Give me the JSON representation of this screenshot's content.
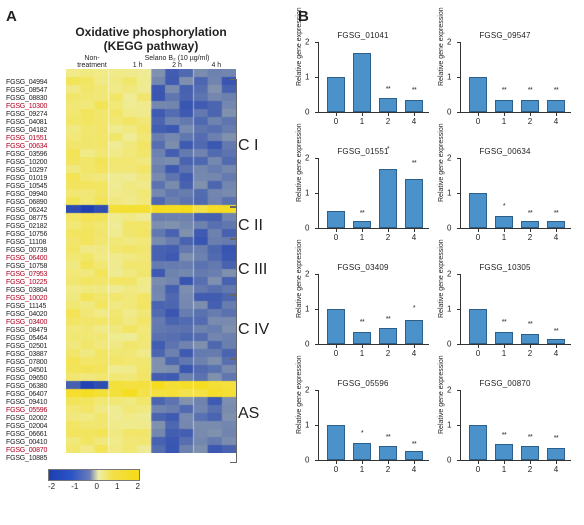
{
  "panels": {
    "A": "A",
    "B": "B"
  },
  "heatmap": {
    "title_line1": "Oxidative phosphorylation",
    "title_line2": "(KEGG pathway)",
    "col_group1": "Non-",
    "col_group1b": "treatment",
    "col_group2": "Selano B₂ (10 µg/ml)",
    "col_labels": [
      "1 h",
      "2 h",
      "4 h"
    ],
    "n_cols": 12,
    "genes": [
      {
        "label": "FGSG_04994",
        "red": false
      },
      {
        "label": "FGSG_08547",
        "red": false
      },
      {
        "label": "FGSG_08830",
        "red": false
      },
      {
        "label": "FGSG_10300",
        "red": true
      },
      {
        "label": "FGSG_09274",
        "red": false
      },
      {
        "label": "FGSG_04081",
        "red": false
      },
      {
        "label": "FGSG_04182",
        "red": false
      },
      {
        "label": "FGSG_01551",
        "red": true
      },
      {
        "label": "FGSG_00634",
        "red": true
      },
      {
        "label": "FGSG_03596",
        "red": false
      },
      {
        "label": "FGSG_10200",
        "red": false
      },
      {
        "label": "FGSG_10297",
        "red": false
      },
      {
        "label": "FGSG_01019",
        "red": false
      },
      {
        "label": "FGSG_10545",
        "red": false
      },
      {
        "label": "FGSG_09940",
        "red": false
      },
      {
        "label": "FGSG_06890",
        "red": false
      },
      {
        "label": "FGSG_06242",
        "red": false
      },
      {
        "label": "FGSG_08775",
        "red": false
      },
      {
        "label": "FGSG_02182",
        "red": false
      },
      {
        "label": "FGSG_10756",
        "red": false
      },
      {
        "label": "FGSG_11108",
        "red": false
      },
      {
        "label": "FGSG_00739",
        "red": false
      },
      {
        "label": "FGSG_06400",
        "red": true
      },
      {
        "label": "FGSG_10758",
        "red": false
      },
      {
        "label": "FGSG_07953",
        "red": true
      },
      {
        "label": "FGSG_10225",
        "red": true
      },
      {
        "label": "FGSG_03804",
        "red": false
      },
      {
        "label": "FGSG_10020",
        "red": true
      },
      {
        "label": "FGSG_11145",
        "red": false
      },
      {
        "label": "FGSG_04020",
        "red": false
      },
      {
        "label": "FGSG_03400",
        "red": true
      },
      {
        "label": "FGSG_08479",
        "red": false
      },
      {
        "label": "FGSG_05464",
        "red": false
      },
      {
        "label": "FGSG_02501",
        "red": false
      },
      {
        "label": "FGSG_03887",
        "red": false
      },
      {
        "label": "FGSG_07800",
        "red": false
      },
      {
        "label": "FGSG_04501",
        "red": false
      },
      {
        "label": "FGSG_09650",
        "red": false
      },
      {
        "label": "FGSG_06380",
        "red": false
      },
      {
        "label": "FGSG_06407",
        "red": false
      },
      {
        "label": "FGSG_09410",
        "red": false
      },
      {
        "label": "FGSG_05596",
        "red": true
      },
      {
        "label": "FGSG_02002",
        "red": false
      },
      {
        "label": "FGSG_02004",
        "red": false
      },
      {
        "label": "FGSG_06661",
        "red": false
      },
      {
        "label": "FGSG_00410",
        "red": false
      },
      {
        "label": "FGSG_00870",
        "red": true
      },
      {
        "label": "FGSG_10885",
        "red": false
      }
    ],
    "complexes": [
      {
        "label": "C I",
        "start": 0,
        "end": 16
      },
      {
        "label": "C II",
        "start": 16,
        "end": 20
      },
      {
        "label": "C III",
        "start": 20,
        "end": 27
      },
      {
        "label": "C IV",
        "start": 27,
        "end": 35
      },
      {
        "label": "AS",
        "start": 35,
        "end": 48
      }
    ],
    "colorscale": {
      "min": -2,
      "max": 2,
      "low": "#1e3fb2",
      "mid": "#eeeeaa",
      "high": "#f6db15",
      "ticks": [
        "-2",
        "-1",
        "0",
        "1",
        "2"
      ]
    },
    "legend_ticks": [
      "-2",
      "-1",
      "0",
      "1",
      "2"
    ]
  },
  "barcharts": {
    "ylabel": "Relative gene expression",
    "ymax": 2,
    "yticks": [
      0,
      1,
      2
    ],
    "x": [
      0,
      1,
      2,
      4
    ],
    "bar_color": "#4a92c9",
    "bar_border": "#2e5f89",
    "charts": [
      {
        "title": "FGSG_01041",
        "values": [
          1.0,
          1.7,
          0.4,
          0.35
        ],
        "err": [
          0.2,
          0.5,
          0.1,
          0.1
        ],
        "sig": [
          "",
          "",
          "**",
          "**"
        ]
      },
      {
        "title": "FGSG_09547",
        "values": [
          1.0,
          0.35,
          0.35,
          0.35
        ],
        "err": [
          0.2,
          0.1,
          0.1,
          0.1
        ],
        "sig": [
          "",
          "**",
          "**",
          "**"
        ]
      },
      {
        "title": "FGSG_01551",
        "values": [
          0.5,
          0.2,
          1.7,
          1.4
        ],
        "err": [
          0.1,
          0.05,
          0.4,
          0.3
        ],
        "sig": [
          "",
          "**",
          "*",
          "**"
        ]
      },
      {
        "title": "FGSG_00634",
        "values": [
          1.0,
          0.35,
          0.2,
          0.2
        ],
        "err": [
          0.2,
          0.1,
          0.05,
          0.05
        ],
        "sig": [
          "",
          "*",
          "**",
          "**"
        ]
      },
      {
        "title": "FGSG_03409",
        "values": [
          1.0,
          0.35,
          0.45,
          0.7
        ],
        "err": [
          0.2,
          0.1,
          0.1,
          0.15
        ],
        "sig": [
          "",
          "**",
          "**",
          "*"
        ]
      },
      {
        "title": "FGSG_10305",
        "values": [
          1.0,
          0.35,
          0.3,
          0.15
        ],
        "err": [
          0.2,
          0.1,
          0.1,
          0.05
        ],
        "sig": [
          "",
          "**",
          "**",
          "**"
        ]
      },
      {
        "title": "FGSG_05596",
        "values": [
          1.0,
          0.5,
          0.4,
          0.25
        ],
        "err": [
          0.2,
          0.1,
          0.1,
          0.05
        ],
        "sig": [
          "",
          "*",
          "**",
          "**"
        ]
      },
      {
        "title": "FGSG_00870",
        "values": [
          1.0,
          0.45,
          0.4,
          0.35
        ],
        "err": [
          0.2,
          0.1,
          0.1,
          0.1
        ],
        "sig": [
          "",
          "**",
          "**",
          "**"
        ]
      }
    ]
  }
}
